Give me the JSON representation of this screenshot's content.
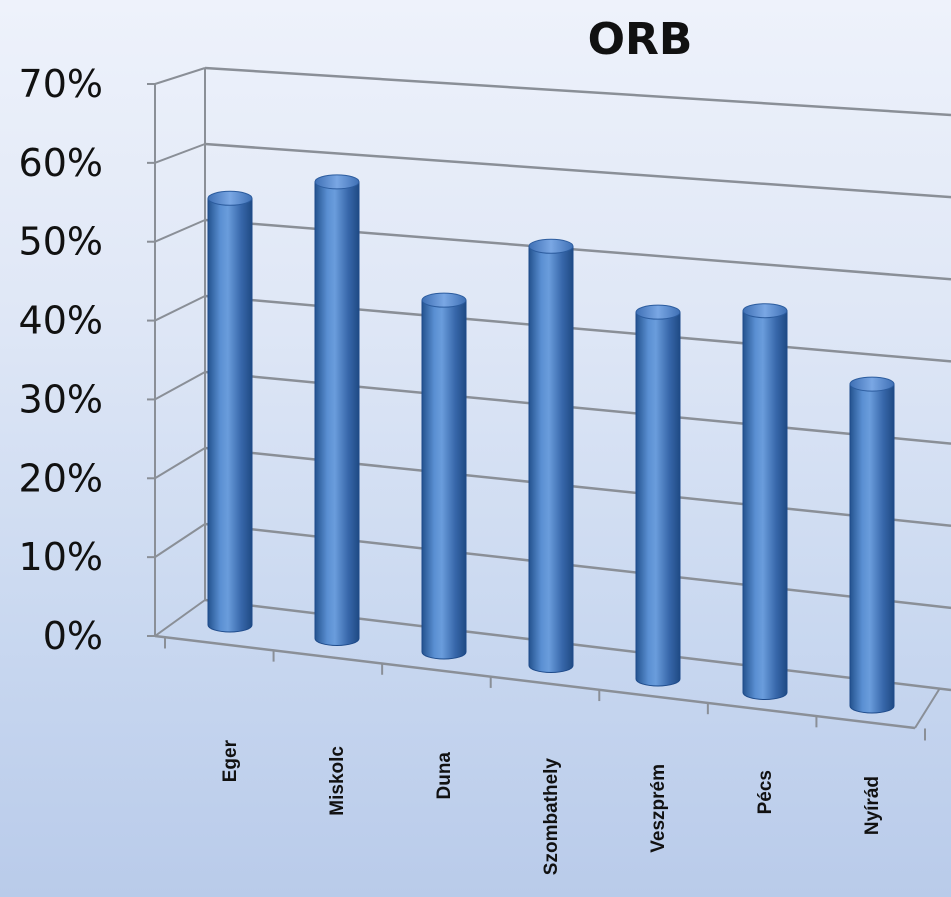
{
  "chart_data": {
    "type": "bar",
    "style": "3d-cylinder",
    "title": "ORB",
    "categories": [
      "Eger",
      "Miskolc",
      "Duna",
      "Szombathely",
      "Veszprém",
      "Pécs",
      "Nyírád"
    ],
    "values": [
      57,
      61,
      47,
      56,
      49,
      51,
      43
    ],
    "value_unit": "%",
    "ylim": [
      0,
      70
    ],
    "yticks": [
      "0%",
      "10%",
      "20%",
      "30%",
      "40%",
      "50%",
      "60%",
      "70%"
    ],
    "grid": true,
    "legend": "none",
    "colors": {
      "bar": "#3e74bc",
      "bar_dark": "#1d4a8a",
      "bar_light": "#8fb5ea",
      "grid": "#8a8f97"
    }
  }
}
